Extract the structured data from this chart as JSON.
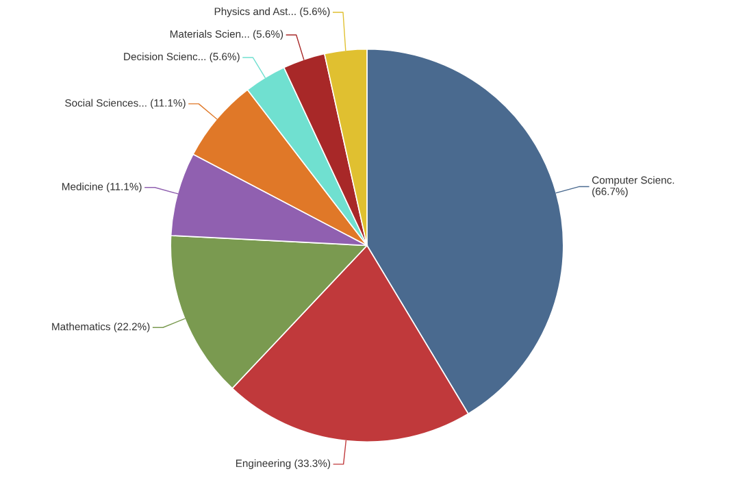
{
  "chart_data": {
    "type": "pie",
    "categories": [
      "Computer Scienc.",
      "Engineering",
      "Mathematics",
      "Medicine",
      "Social Sciences...",
      "Decision Scienc...",
      "Materials Scien...",
      "Physics and Ast..."
    ],
    "values": [
      66.7,
      33.3,
      22.2,
      11.1,
      11.1,
      5.6,
      5.6,
      5.6
    ],
    "value_labels": [
      "(66.7%)",
      "(33.3%)",
      "(22.2%)",
      "(11.1%)",
      "(11.1%)",
      "(5.6%)",
      "(5.6%)",
      "(5.6%)"
    ],
    "colors": [
      "#4a6a8f",
      "#c0393b",
      "#7a9a50",
      "#9060b0",
      "#e07828",
      "#70e0d0",
      "#a82828",
      "#e0c030"
    ]
  }
}
